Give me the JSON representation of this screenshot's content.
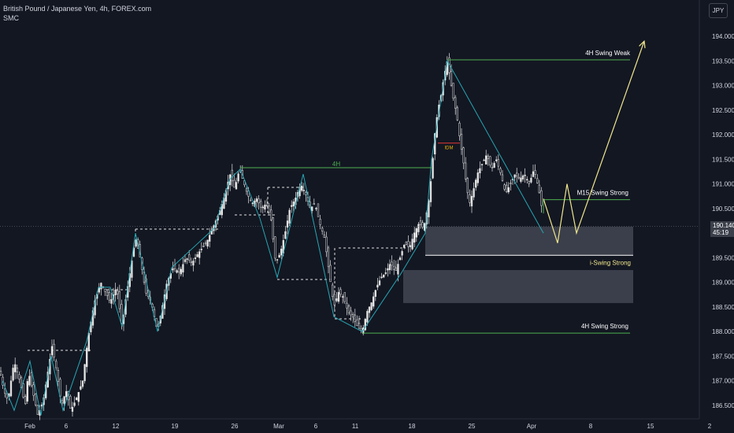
{
  "header": {
    "symbol_line": "British Pound / Japanese Yen, 4h, FOREX.com",
    "indicator": "SMC"
  },
  "currency_button": "JPY",
  "colors": {
    "background": "#131722",
    "candle": "#e6e6e6",
    "teal_line": "#26a6b3",
    "green_line": "#4caf50",
    "yellow_path": "#f0e68c",
    "zone": "#4a4d59",
    "text": "#d1d4dc"
  },
  "price_label": {
    "value": "190.140",
    "countdown": "45:19"
  },
  "chart_data": {
    "type": "candlestick",
    "title": "British Pound / Japanese Yen, 4h, FOREX.com",
    "ylim": [
      186.3,
      194.5
    ],
    "y_ticks": [
      "186.500",
      "187.000",
      "187.500",
      "188.000",
      "188.500",
      "189.000",
      "189.500",
      "190.000",
      "190.500",
      "191.000",
      "191.500",
      "192.000",
      "192.500",
      "193.000",
      "193.500",
      "194.000"
    ],
    "x_ticks": [
      "Feb",
      "6",
      "12",
      "19",
      "26",
      "Mar",
      "6",
      "11",
      "18",
      "25",
      "Apr",
      "8",
      "15",
      "2"
    ],
    "close_path": [
      [
        0,
        187.2
      ],
      [
        5,
        186.8
      ],
      [
        10,
        186.6
      ],
      [
        18,
        187.4
      ],
      [
        25,
        187.0
      ],
      [
        32,
        186.5
      ],
      [
        36,
        187.2
      ],
      [
        40,
        186.9
      ],
      [
        48,
        186.3
      ],
      [
        55,
        186.6
      ],
      [
        60,
        187.1
      ],
      [
        66,
        187.7
      ],
      [
        72,
        187.2
      ],
      [
        78,
        186.5
      ],
      [
        84,
        186.8
      ],
      [
        90,
        186.4
      ],
      [
        96,
        186.6
      ],
      [
        105,
        187.0
      ],
      [
        112,
        187.9
      ],
      [
        120,
        188.6
      ],
      [
        128,
        189.0
      ],
      [
        134,
        188.8
      ],
      [
        140,
        188.6
      ],
      [
        148,
        188.9
      ],
      [
        155,
        188.1
      ],
      [
        160,
        188.7
      ],
      [
        165,
        189.2
      ],
      [
        172,
        189.9
      ],
      [
        178,
        189.5
      ],
      [
        185,
        188.8
      ],
      [
        192,
        188.6
      ],
      [
        200,
        188.0
      ],
      [
        206,
        188.5
      ],
      [
        212,
        189.0
      ],
      [
        220,
        189.3
      ],
      [
        228,
        189.2
      ],
      [
        236,
        189.5
      ],
      [
        244,
        189.4
      ],
      [
        252,
        189.6
      ],
      [
        262,
        189.8
      ],
      [
        270,
        190.1
      ],
      [
        278,
        190.4
      ],
      [
        286,
        190.8
      ],
      [
        292,
        191.2
      ],
      [
        298,
        190.9
      ],
      [
        304,
        191.3
      ],
      [
        308,
        191.1
      ],
      [
        314,
        190.8
      ],
      [
        320,
        190.6
      ],
      [
        326,
        190.7
      ],
      [
        332,
        190.5
      ],
      [
        338,
        190.6
      ],
      [
        344,
        190.3
      ],
      [
        350,
        189.4
      ],
      [
        356,
        189.6
      ],
      [
        362,
        190.0
      ],
      [
        368,
        190.5
      ],
      [
        375,
        190.7
      ],
      [
        382,
        191.0
      ],
      [
        388,
        190.8
      ],
      [
        394,
        190.5
      ],
      [
        400,
        190.6
      ],
      [
        406,
        190.2
      ],
      [
        412,
        189.9
      ],
      [
        418,
        189.2
      ],
      [
        424,
        188.5
      ],
      [
        430,
        188.8
      ],
      [
        436,
        188.7
      ],
      [
        442,
        188.4
      ],
      [
        448,
        188.3
      ],
      [
        454,
        188.1
      ],
      [
        460,
        188.0
      ],
      [
        466,
        188.4
      ],
      [
        472,
        188.6
      ],
      [
        478,
        188.9
      ],
      [
        484,
        189.1
      ],
      [
        490,
        189.2
      ],
      [
        496,
        189.4
      ],
      [
        502,
        189.2
      ],
      [
        508,
        189.5
      ],
      [
        514,
        189.8
      ],
      [
        520,
        189.7
      ],
      [
        526,
        190.0
      ],
      [
        532,
        190.2
      ],
      [
        538,
        190.1
      ],
      [
        544,
        190.6
      ],
      [
        548,
        191.2
      ],
      [
        552,
        192.0
      ],
      [
        556,
        192.5
      ],
      [
        560,
        192.8
      ],
      [
        564,
        193.2
      ],
      [
        568,
        193.5
      ],
      [
        572,
        193.1
      ],
      [
        576,
        192.7
      ],
      [
        580,
        192.4
      ],
      [
        584,
        191.9
      ],
      [
        588,
        191.5
      ],
      [
        592,
        191.0
      ],
      [
        596,
        190.6
      ],
      [
        600,
        190.8
      ],
      [
        606,
        191.2
      ],
      [
        612,
        191.4
      ],
      [
        618,
        191.6
      ],
      [
        624,
        191.3
      ],
      [
        630,
        191.5
      ],
      [
        636,
        191.2
      ],
      [
        642,
        190.8
      ],
      [
        648,
        191.0
      ],
      [
        654,
        191.2
      ],
      [
        660,
        191.1
      ],
      [
        666,
        191.2
      ],
      [
        672,
        191.0
      ],
      [
        678,
        191.3
      ],
      [
        684,
        190.9
      ],
      [
        688,
        190.5
      ],
      [
        692,
        190.2
      ]
    ],
    "zigzag": [
      [
        3,
        187.0
      ],
      [
        18,
        186.4
      ],
      [
        38,
        187.4
      ],
      [
        52,
        186.3
      ],
      [
        65,
        187.5
      ],
      [
        80,
        186.4
      ],
      [
        110,
        187.8
      ],
      [
        125,
        188.9
      ],
      [
        140,
        188.9
      ],
      [
        155,
        188.1
      ],
      [
        172,
        190.0
      ],
      [
        200,
        188.0
      ],
      [
        218,
        189.3
      ],
      [
        272,
        190.1
      ],
      [
        292,
        191.1
      ],
      [
        305,
        191.3
      ],
      [
        330,
        190.3
      ],
      [
        352,
        189.1
      ],
      [
        385,
        191.2
      ],
      [
        424,
        188.3
      ],
      [
        460,
        188.0
      ],
      [
        510,
        189.2
      ],
      [
        540,
        190.0
      ],
      [
        548,
        191.5
      ],
      [
        568,
        193.5
      ],
      [
        690,
        190.0
      ]
    ],
    "levels": [
      {
        "label": "4H Swing Weak",
        "value": 193.52
      },
      {
        "label": "4H",
        "value": 191.33
      },
      {
        "label": "M15 Swing Strong",
        "value": 190.68
      },
      {
        "label": "i-Swing Strong",
        "value": 189.55
      },
      {
        "label": "4H Swing Strong",
        "value": 187.97
      },
      {
        "label": "IDM",
        "value": 191.83
      }
    ],
    "zones": [
      {
        "from": 189.55,
        "to": 190.13
      },
      {
        "from": 188.58,
        "to": 189.25
      }
    ],
    "projection": [
      [
        690,
        190.7
      ],
      [
        708,
        189.8
      ],
      [
        720,
        191.0
      ],
      [
        732,
        190.0
      ],
      [
        818,
        193.9
      ]
    ]
  }
}
